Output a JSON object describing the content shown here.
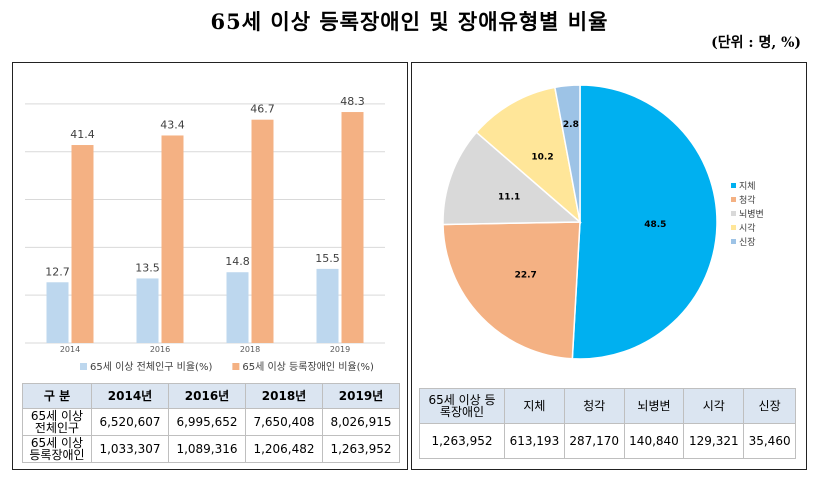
{
  "title": "65세 이상 등록장애인 및 장애유형별 비율",
  "unit": "(단위 : 명, %)",
  "chart_data": [
    {
      "type": "bar",
      "categories": [
        "2014",
        "2016",
        "2018",
        "2019"
      ],
      "series": [
        {
          "name": "65세 이상 전체인구 비율(%)",
          "color": "#bdd7ee",
          "values": [
            12.7,
            13.5,
            14.8,
            15.5
          ]
        },
        {
          "name": "65세 이상 등록장애인 비율(%)",
          "color": "#f4b183",
          "values": [
            41.4,
            43.4,
            46.7,
            48.3
          ]
        }
      ],
      "ylim": [
        0,
        55
      ],
      "gridlines": [
        0,
        10,
        20,
        30,
        40,
        50
      ],
      "legend": "bottom"
    },
    {
      "type": "pie",
      "categories": [
        "지체",
        "청각",
        "뇌병변",
        "시각",
        "신장"
      ],
      "values": [
        48.5,
        22.7,
        11.1,
        10.2,
        2.8
      ],
      "colors": [
        "#00b0f0",
        "#f4b183",
        "#d9d9d9",
        "#ffe699",
        "#9dc3e6"
      ],
      "legend": "right"
    }
  ],
  "tables": [
    {
      "header": [
        "구 분",
        "2014년",
        "2016년",
        "2018년",
        "2019년"
      ],
      "rows": [
        [
          "65세 이상 전체인구",
          "6,520,607",
          "6,995,652",
          "7,650,408",
          "8,026,915"
        ],
        [
          "65세 이상 등록장애인",
          "1,033,307",
          "1,089,316",
          "1,206,482",
          "1,263,952"
        ]
      ]
    },
    {
      "header": [
        "65세 이상 등록장애인",
        "지체",
        "청각",
        "뇌병변",
        "시각",
        "신장"
      ],
      "rows": [
        [
          "1,263,952",
          "613,193",
          "287,170",
          "140,840",
          "129,321",
          "35,460"
        ]
      ]
    }
  ]
}
